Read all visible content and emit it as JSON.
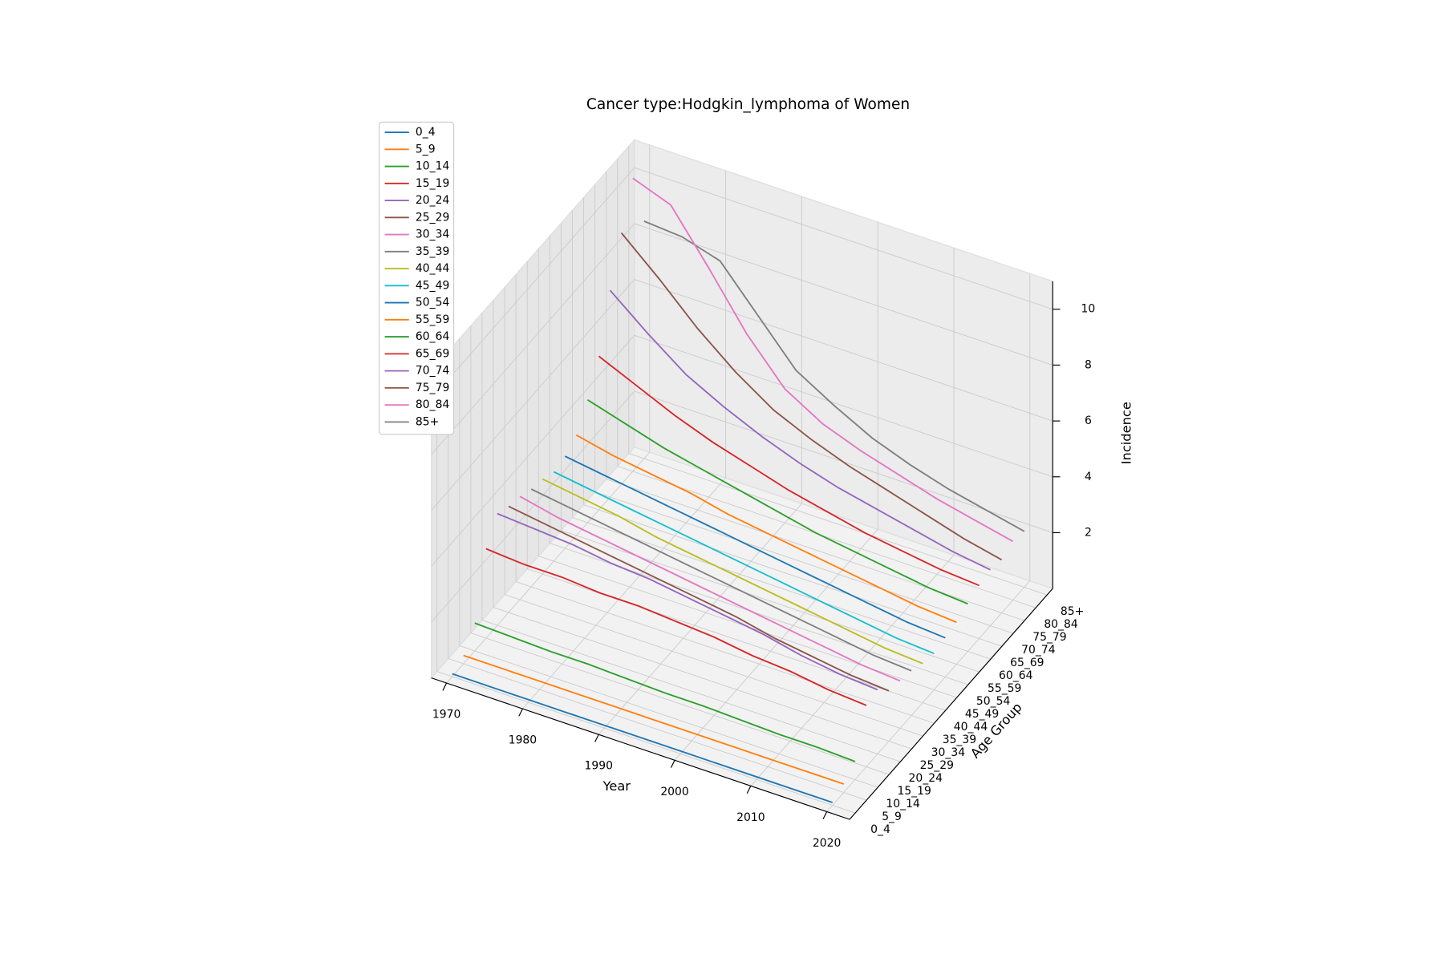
{
  "chart_data": {
    "type": "line3d",
    "title": "Cancer type:Hodgkin_lymphoma of Women",
    "x_label": "Year",
    "y_label": "Age Group",
    "z_label": "Incidence",
    "x": [
      1970,
      1975,
      1980,
      1985,
      1990,
      1995,
      2000,
      2005,
      2010,
      2015,
      2020
    ],
    "xlim": [
      1968,
      2023
    ],
    "xticks": [
      1970,
      1980,
      1990,
      2000,
      2010,
      2020
    ],
    "zlim": [
      0,
      11
    ],
    "zticks": [
      2,
      4,
      6,
      8,
      10
    ],
    "grid": true,
    "legend": "upper left",
    "series": [
      {
        "name": "0_4",
        "color": "#1f77b4",
        "values": [
          0.1,
          0.1,
          0.1,
          0.1,
          0.1,
          0.1,
          0.1,
          0.1,
          0.1,
          0.1,
          0.1
        ]
      },
      {
        "name": "5_9",
        "color": "#ff7f0e",
        "values": [
          0.3,
          0.3,
          0.3,
          0.3,
          0.3,
          0.3,
          0.3,
          0.3,
          0.3,
          0.3,
          0.3
        ]
      },
      {
        "name": "10_14",
        "color": "#2ca02c",
        "values": [
          1.0,
          0.95,
          0.9,
          0.9,
          0.85,
          0.8,
          0.8,
          0.75,
          0.7,
          0.7,
          0.65
        ]
      },
      {
        "name": "15_19",
        "color": "#d62728",
        "values": [
          3.2,
          3.1,
          3.1,
          3.0,
          3.0,
          2.9,
          2.8,
          2.6,
          2.5,
          2.3,
          2.2
        ]
      },
      {
        "name": "20_24",
        "color": "#9467bd",
        "values": [
          4.0,
          3.9,
          3.8,
          3.6,
          3.5,
          3.3,
          3.1,
          2.9,
          2.6,
          2.4,
          2.3
        ]
      },
      {
        "name": "25_29",
        "color": "#8c564b",
        "values": [
          3.8,
          3.6,
          3.4,
          3.2,
          3.0,
          2.8,
          2.6,
          2.3,
          2.1,
          1.9,
          1.8
        ]
      },
      {
        "name": "30_34",
        "color": "#e377c2",
        "values": [
          3.7,
          3.4,
          3.2,
          3.0,
          2.8,
          2.6,
          2.4,
          2.2,
          2.0,
          1.8,
          1.7
        ]
      },
      {
        "name": "35_39",
        "color": "#7f7f7f",
        "values": [
          3.5,
          3.3,
          3.1,
          2.9,
          2.7,
          2.5,
          2.3,
          2.1,
          1.9,
          1.7,
          1.6
        ]
      },
      {
        "name": "40_44",
        "color": "#bcbd22",
        "values": [
          3.4,
          3.2,
          3.0,
          2.7,
          2.5,
          2.3,
          2.1,
          1.9,
          1.7,
          1.5,
          1.4
        ]
      },
      {
        "name": "45_49",
        "color": "#17becf",
        "values": [
          3.2,
          3.0,
          2.8,
          2.6,
          2.4,
          2.2,
          2.0,
          1.8,
          1.6,
          1.4,
          1.3
        ]
      },
      {
        "name": "50_54",
        "color": "#1f77b4",
        "values": [
          3.3,
          3.1,
          2.9,
          2.7,
          2.5,
          2.3,
          2.1,
          1.9,
          1.7,
          1.5,
          1.4
        ]
      },
      {
        "name": "55_59",
        "color": "#ff7f0e",
        "values": [
          3.6,
          3.3,
          3.1,
          2.9,
          2.6,
          2.4,
          2.2,
          2.0,
          1.8,
          1.6,
          1.5
        ]
      },
      {
        "name": "60_64",
        "color": "#2ca02c",
        "values": [
          4.4,
          4.0,
          3.6,
          3.3,
          3.0,
          2.7,
          2.4,
          2.2,
          2.0,
          1.8,
          1.7
        ]
      },
      {
        "name": "65_69",
        "color": "#d62728",
        "values": [
          5.5,
          4.9,
          4.3,
          3.8,
          3.4,
          3.0,
          2.7,
          2.4,
          2.2,
          2.0,
          1.9
        ]
      },
      {
        "name": "70_74",
        "color": "#9467bd",
        "values": [
          7.4,
          6.3,
          5.3,
          4.6,
          4.0,
          3.5,
          3.1,
          2.8,
          2.5,
          2.2,
          2.0
        ]
      },
      {
        "name": "75_79",
        "color": "#8c564b",
        "values": [
          9.0,
          7.8,
          6.5,
          5.4,
          4.5,
          3.9,
          3.4,
          3.0,
          2.6,
          2.2,
          1.9
        ]
      },
      {
        "name": "80_84",
        "color": "#e377c2",
        "values": [
          10.5,
          10.0,
          8.2,
          6.3,
          4.8,
          4.0,
          3.5,
          3.1,
          2.7,
          2.4,
          2.1
        ]
      },
      {
        "name": "85+",
        "color": "#7f7f7f",
        "values": [
          8.5,
          8.4,
          8.0,
          6.5,
          5.0,
          4.2,
          3.5,
          3.0,
          2.6,
          2.3,
          2.0
        ]
      }
    ]
  }
}
